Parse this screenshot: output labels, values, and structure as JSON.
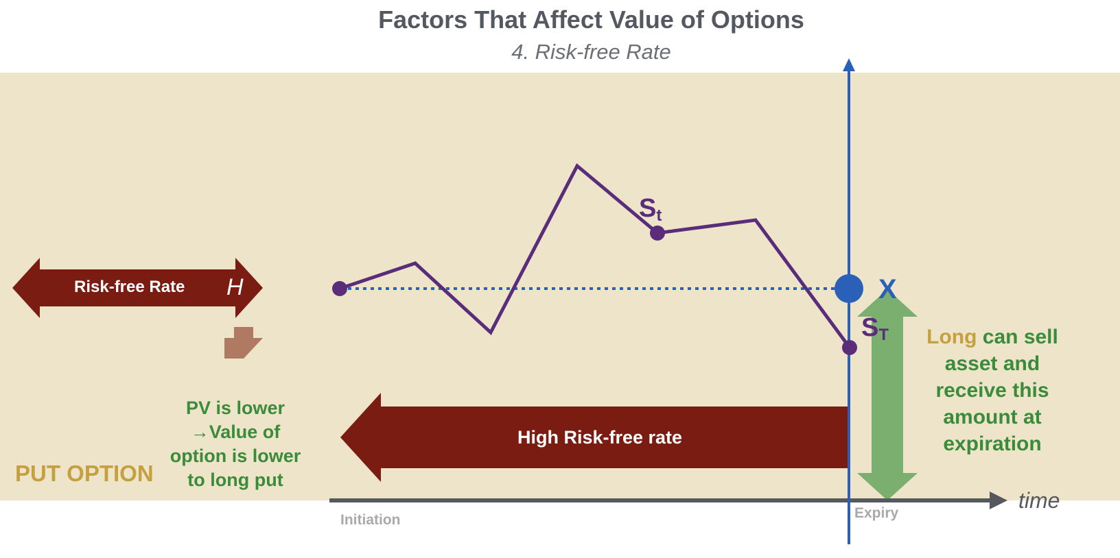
{
  "title": "Factors That Affect Value of Options",
  "subtitle": "4. Risk-free Rate",
  "left_arrow": {
    "label": "Risk-free Rate",
    "symbol": "H"
  },
  "pv_note": "PV is lower →Value of option is lower to long put",
  "option_type": "PUT OPTION",
  "bottom_arrow": {
    "label": "High Risk-free rate"
  },
  "price_labels": {
    "current_base": "S",
    "current_sub": "t",
    "terminal_base": "S",
    "terminal_sub": "T",
    "strike": "X"
  },
  "right_note": {
    "highlight": "Long",
    "text": " can sell asset and receive this amount at expiration"
  },
  "axis": {
    "start": "Initiation",
    "end": "Expiry",
    "time": "time"
  },
  "colors": {
    "band": "#ede4c9",
    "dark_red": "#7b1c12",
    "path": "#5a2d7a",
    "blue": "#2a60b8",
    "green": "#3a8c3a",
    "gold": "#c4a03f",
    "green_arrow": "#7aaf6f",
    "down_arrow": "#b07a62"
  },
  "icons": [
    "double-arrow-left-right",
    "down-arrow",
    "left-arrow",
    "double-arrow-up-down",
    "time-axis-arrow",
    "vertical-axis-arrow"
  ]
}
